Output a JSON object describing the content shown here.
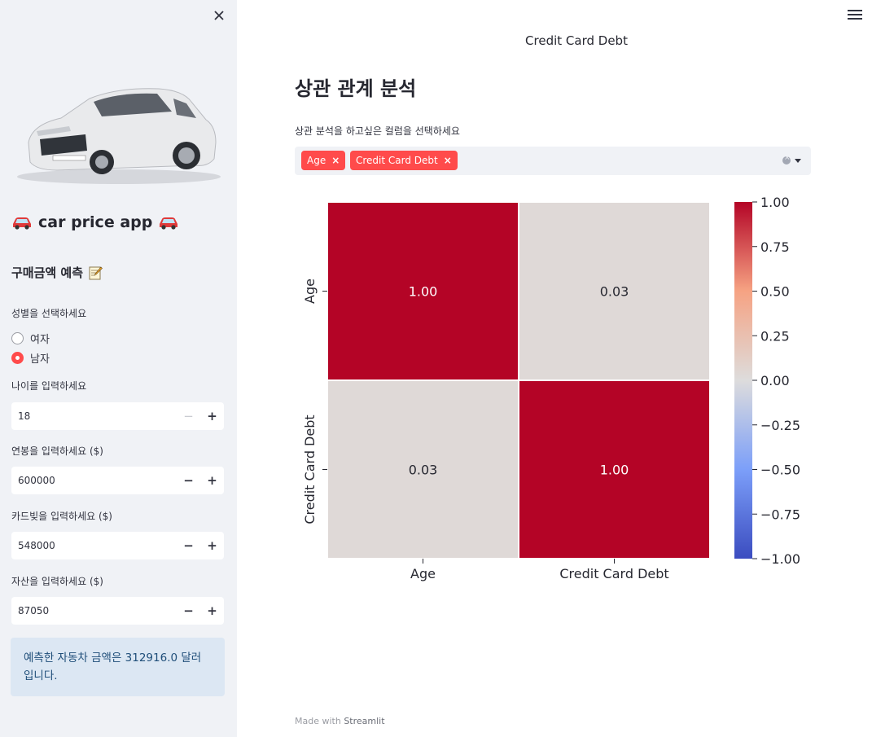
{
  "sidebar": {
    "app_title": "car price app",
    "subtitle": "구매금액 예측",
    "gender": {
      "label": "성별을 선택하세요",
      "options": [
        "여자",
        "남자"
      ],
      "selected": "남자"
    },
    "age": {
      "label": "나이를 입력하세요",
      "value": "18"
    },
    "salary": {
      "label": "연봉을 입력하세요 ($)",
      "value": "600000"
    },
    "card_debt": {
      "label": "카드빚을 입력하세요 ($)",
      "value": "548000"
    },
    "assets": {
      "label": "자산을 입력하세요 ($)",
      "value": "87050"
    },
    "result": {
      "line1": "예측한 자동차 금액은 312916.0 달러",
      "line2": "입니다."
    }
  },
  "main": {
    "top_caption": "Credit Card Debt",
    "title": "상관 관계 분석",
    "multiselect": {
      "label": "상관 분석을 하고싶은 컬럼을 선택하세요",
      "chips": [
        "Age",
        "Credit Card Debt"
      ]
    },
    "footer": {
      "prefix": "Made with",
      "brand": "Streamlit"
    }
  },
  "chart_data": {
    "type": "heatmap",
    "rows": [
      "Age",
      "Credit Card Debt"
    ],
    "cols": [
      "Age",
      "Credit Card Debt"
    ],
    "values": [
      [
        1.0,
        0.03
      ],
      [
        0.03,
        1.0
      ]
    ],
    "value_format": "0.00",
    "colormap": "coolwarm",
    "vmin": -1.0,
    "vmax": 1.0,
    "colorbar_ticks": [
      "1.00",
      "0.75",
      "0.50",
      "0.25",
      "0.00",
      "−0.25",
      "−0.50",
      "−0.75",
      "−1.00"
    ],
    "colorbar_tick_values": [
      1.0,
      0.75,
      0.5,
      0.25,
      0.0,
      -0.25,
      -0.5,
      -0.75,
      -1.0
    ]
  },
  "colors": {
    "accent": "#ff4b4b",
    "sidebar_bg": "#f0f2f6",
    "info_bg": "#dce7f3",
    "info_text": "#1f4e79"
  },
  "icons": {
    "close": "close-icon",
    "menu": "hamburger-menu-icon",
    "car": "red-car-icon",
    "memo": "memo-icon"
  }
}
